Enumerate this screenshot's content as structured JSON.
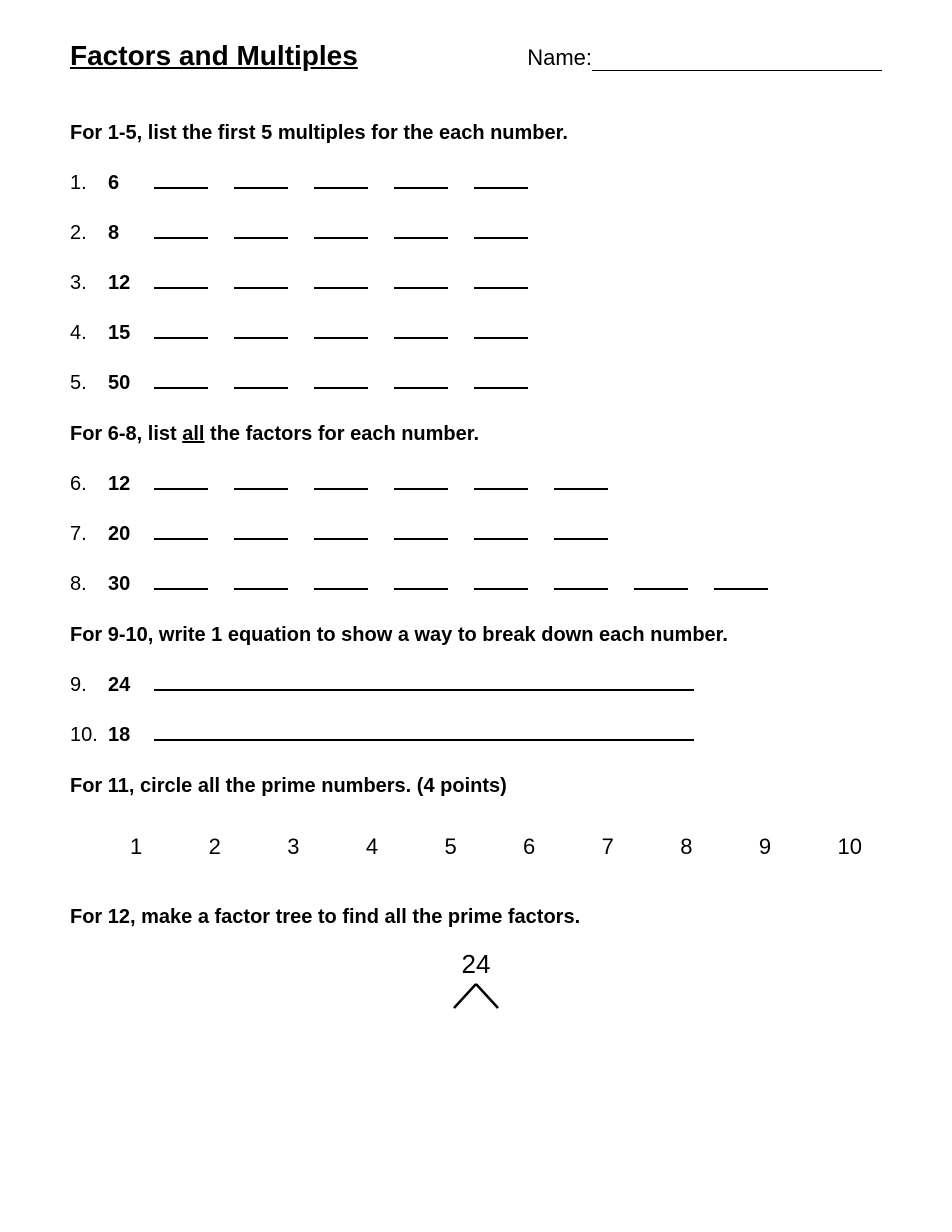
{
  "title": "Factors and Multiples",
  "name_label": "Name:",
  "sections": {
    "s1": {
      "instruction": "For 1-5, list the first 5 multiples for the each number.",
      "blanks_per_row": 5,
      "items": [
        {
          "num": "1.",
          "val": "6"
        },
        {
          "num": "2.",
          "val": "8"
        },
        {
          "num": "3.",
          "val": "12"
        },
        {
          "num": "4.",
          "val": "15"
        },
        {
          "num": "5.",
          "val": "50"
        }
      ]
    },
    "s2": {
      "instruction_pre": "For 6-8, list ",
      "instruction_u": "all",
      "instruction_post": " the factors for each number.",
      "items": [
        {
          "num": "6.",
          "val": "12",
          "blanks": 6
        },
        {
          "num": "7.",
          "val": "20",
          "blanks": 6
        },
        {
          "num": "8.",
          "val": "30",
          "blanks": 8
        }
      ]
    },
    "s3": {
      "instruction": "For 9-10, write 1 equation to show a way to break down each number.",
      "items": [
        {
          "num": "9.",
          "val": "24"
        },
        {
          "num": "10.",
          "val": "18"
        }
      ]
    },
    "s4": {
      "instruction": "For 11, circle all the prime numbers. (4 points)",
      "numbers": [
        "1",
        "2",
        "3",
        "4",
        "5",
        "6",
        "7",
        "8",
        "9",
        "10"
      ]
    },
    "s5": {
      "instruction": "For 12, make a factor tree to find all the prime factors.",
      "tree_root": "24"
    }
  }
}
